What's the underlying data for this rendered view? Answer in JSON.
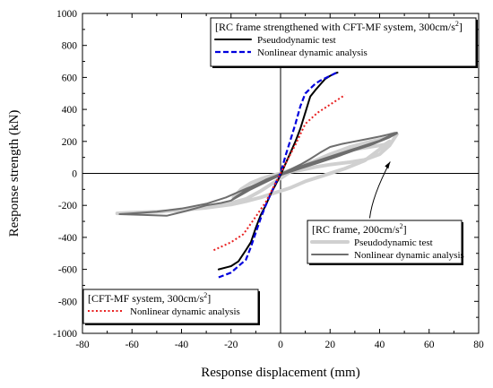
{
  "chart_data": {
    "type": "line",
    "xlabel": "Response displacement (mm)",
    "ylabel": "Response strength (kN)",
    "xlim": [
      -80,
      80
    ],
    "ylim": [
      -1000,
      1000
    ],
    "x_ticks": [
      -80,
      -60,
      -40,
      -20,
      0,
      20,
      40,
      60,
      80
    ],
    "y_ticks": [
      -1000,
      -800,
      -600,
      -400,
      -200,
      0,
      200,
      400,
      600,
      800,
      1000
    ],
    "x_tick_labels": [
      "-80",
      "-60",
      "-40",
      "-20",
      "0",
      "20",
      "40",
      "60",
      "80"
    ],
    "y_tick_labels": [
      "-1000",
      "-800",
      "-600",
      "-400",
      "-200",
      "0",
      "200",
      "400",
      "600",
      "800",
      "1000"
    ],
    "grid": false,
    "legends": [
      {
        "id": "cftmf",
        "placement": "top-right",
        "title_prefix": "[RC frame strengthened with CFT-MF system, 300cm/s",
        "title_sup": "2",
        "title_suffix": "]",
        "entries": [
          {
            "label": "Pseudodynamic test",
            "series": "cftmf_test"
          },
          {
            "label": "Nonlinear dynamic analysis",
            "series": "cftmf_analysis"
          }
        ]
      },
      {
        "id": "rc",
        "placement": "center-right",
        "title_prefix": "[RC frame, 200cm/s",
        "title_sup": "2",
        "title_suffix": "]",
        "entries": [
          {
            "label": "Pseudodynamic test",
            "series": "rc_test"
          },
          {
            "label": "Nonlinear dynamic analysis",
            "series": "rc_analysis"
          }
        ]
      },
      {
        "id": "sys",
        "placement": "bottom-left",
        "title_prefix": "[CFT-MF system, 300cm/s",
        "title_sup": "2",
        "title_suffix": "]",
        "entries": [
          {
            "label": "Nonlinear dynamic analysis",
            "series": "system_analysis"
          }
        ]
      }
    ],
    "series": [
      {
        "id": "rc_test",
        "color": "#d0d0d0",
        "style": "solid-thick",
        "x": [
          -66,
          -48,
          -30,
          -20,
          -14,
          -8,
          -4,
          0,
          4,
          8,
          14,
          20,
          28,
          34,
          38,
          40,
          42,
          44,
          46,
          47,
          44,
          40,
          34,
          28,
          20,
          14,
          8,
          4,
          0,
          -4,
          -8,
          -12,
          -16,
          -19,
          -14,
          -10,
          -6,
          -2,
          2,
          6,
          10,
          14,
          18,
          22,
          26,
          30,
          34,
          38,
          42,
          44,
          40,
          34,
          26,
          18,
          10,
          4,
          -2,
          -8,
          -14,
          -20,
          -30,
          -40,
          -50,
          -60,
          -66
        ],
        "y": [
          -250,
          -240,
          -205,
          -185,
          -160,
          -110,
          -70,
          -30,
          10,
          40,
          80,
          120,
          165,
          190,
          205,
          210,
          220,
          240,
          250,
          245,
          175,
          120,
          85,
          70,
          55,
          40,
          20,
          10,
          0,
          -15,
          -35,
          -60,
          -100,
          -150,
          -110,
          -70,
          -40,
          -15,
          10,
          30,
          55,
          80,
          105,
          125,
          140,
          150,
          160,
          170,
          180,
          200,
          150,
          80,
          30,
          -10,
          -50,
          -90,
          -120,
          -150,
          -175,
          -195,
          -215,
          -230,
          -240,
          -245,
          -250
        ]
      },
      {
        "id": "rc_analysis",
        "color": "#6e6e6e",
        "style": "solid",
        "x": [
          -65,
          -55,
          -46,
          -38,
          -30,
          -24,
          -20,
          -16,
          -12,
          -8,
          -4,
          0,
          4,
          8,
          12,
          16,
          20,
          25,
          30,
          35,
          40,
          44,
          47,
          44,
          40,
          34,
          28,
          22,
          16,
          10,
          6,
          2,
          -2,
          -6,
          -10,
          -14,
          -18,
          -20,
          -16,
          -12,
          -8,
          -4,
          0,
          4,
          8,
          12,
          16,
          20,
          24,
          28,
          32,
          36,
          40,
          44,
          47,
          44,
          38,
          30,
          22,
          14,
          8,
          2,
          -4,
          -10,
          -16,
          -22,
          -30,
          -40,
          -50,
          -60,
          -65
        ],
        "y": [
          -255,
          -260,
          -265,
          -235,
          -200,
          -185,
          -170,
          -130,
          -95,
          -65,
          -35,
          -5,
          25,
          55,
          90,
          130,
          165,
          185,
          200,
          215,
          230,
          245,
          255,
          235,
          205,
          175,
          145,
          115,
          85,
          55,
          30,
          10,
          -15,
          -40,
          -70,
          -105,
          -145,
          -170,
          -135,
          -100,
          -70,
          -40,
          -10,
          15,
          35,
          55,
          75,
          95,
          115,
          135,
          155,
          175,
          200,
          225,
          250,
          230,
          190,
          145,
          100,
          60,
          30,
          0,
          -35,
          -70,
          -110,
          -150,
          -190,
          -220,
          -240,
          -250,
          -255
        ]
      },
      {
        "id": "cftmf_test",
        "color": "#000000",
        "style": "solid",
        "x": [
          -25,
          -20,
          -17,
          -14,
          -12,
          -10,
          -8,
          -6,
          -4,
          -2,
          0,
          2,
          4,
          6,
          8,
          10,
          12,
          14,
          16,
          18,
          20,
          22,
          23
        ],
        "y": [
          -600,
          -580,
          -550,
          -480,
          -430,
          -340,
          -260,
          -200,
          -130,
          -70,
          -10,
          60,
          130,
          200,
          280,
          380,
          480,
          520,
          555,
          590,
          610,
          625,
          630
        ]
      },
      {
        "id": "cftmf_analysis",
        "color": "#0000dd",
        "style": "dashed",
        "x": [
          -25,
          -20,
          -17,
          -14,
          -12,
          -10,
          -8,
          -6,
          -4,
          -2,
          0,
          2,
          4,
          6,
          8,
          10,
          12,
          14,
          16,
          18,
          20,
          22,
          23
        ],
        "y": [
          -650,
          -620,
          -580,
          -540,
          -460,
          -370,
          -280,
          -200,
          -130,
          -60,
          0,
          110,
          210,
          310,
          420,
          500,
          530,
          560,
          580,
          595,
          610,
          625,
          635
        ]
      },
      {
        "id": "system_analysis",
        "color": "#e82020",
        "style": "dotted",
        "x": [
          -27,
          -20,
          -15,
          -10,
          -6,
          -3,
          0,
          3,
          6,
          10,
          15,
          20,
          26
        ],
        "y": [
          -480,
          -430,
          -380,
          -270,
          -180,
          -90,
          0,
          90,
          180,
          310,
          380,
          430,
          490
        ]
      }
    ],
    "annotation_arrow": {
      "from": [
        36,
        -280
      ],
      "to": [
        45,
        90
      ]
    }
  }
}
